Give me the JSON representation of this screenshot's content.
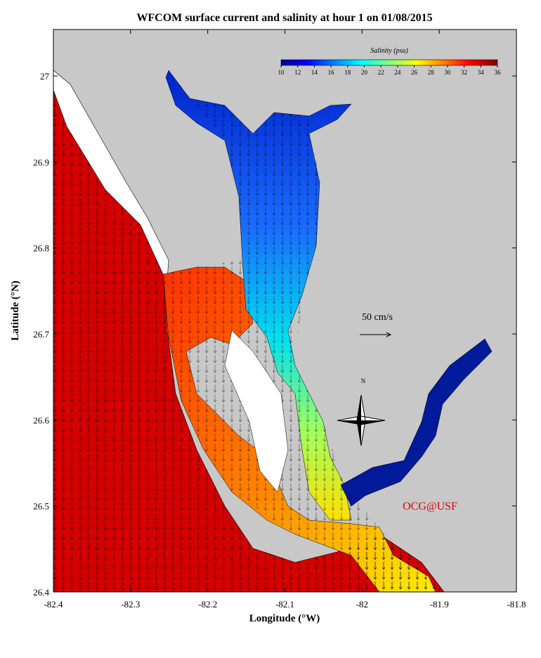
{
  "chart_data": {
    "type": "map",
    "title": "WFCOM surface current and salinity at hour 1 on 01/08/2015",
    "xlabel": "Longitude (°W)",
    "ylabel": "Latitude (°N)",
    "xlim": [
      -82.4,
      -81.8
    ],
    "xticks": [
      -82.4,
      -82.3,
      -82.2,
      -82.1,
      -82,
      -81.9,
      -81.8
    ],
    "ylim": [
      26.4,
      27.054
    ],
    "yticks": [
      26.4,
      26.5,
      26.6,
      26.7,
      26.8,
      26.9,
      27
    ],
    "colorbar": {
      "label": "Salinity (psu)",
      "lim": [
        10,
        36
      ],
      "ticks": [
        10,
        12,
        14,
        16,
        18,
        20,
        22,
        24,
        26,
        28,
        30,
        32,
        34,
        36
      ]
    },
    "scale_label": "50 cm/s",
    "compass_label": "N",
    "credit": "OCG@USF"
  }
}
